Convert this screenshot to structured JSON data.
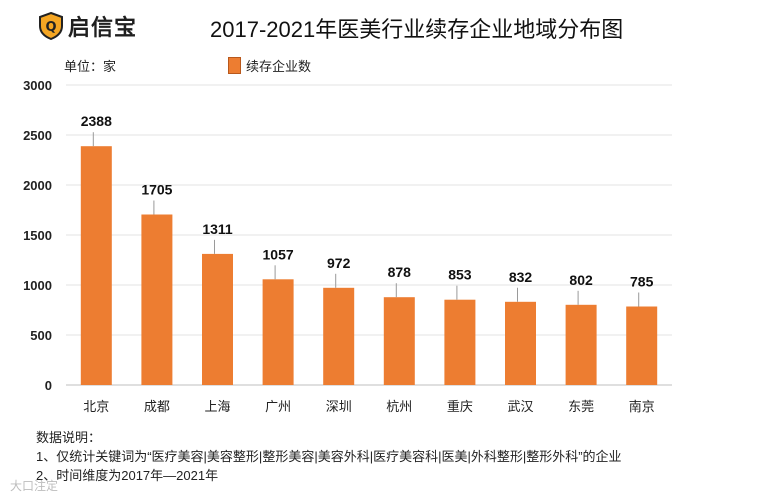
{
  "brand": {
    "name": "启信宝",
    "accent": "#F5A623"
  },
  "watermark": "大口注定",
  "legend_label": "续存企业数",
  "unit_label": "单位：家",
  "notes": {
    "heading": "数据说明：",
    "line1": "1、仅统计关键词为“医疗美容|美容整形|整形美容|美容外科|医疗美容科|医美|外科整形|整形外科”的企业",
    "line2": "2、时间维度为2017年—2021年"
  },
  "chart_data": {
    "type": "bar",
    "title": "2017-2021年医美行业续存企业地域分布图",
    "categories": [
      "北京",
      "成都",
      "上海",
      "广州",
      "深圳",
      "杭州",
      "重庆",
      "武汉",
      "东莞",
      "南京"
    ],
    "series": [
      {
        "name": "续存企业数",
        "values": [
          2388,
          1705,
          1311,
          1057,
          972,
          878,
          853,
          832,
          802,
          785
        ],
        "color": "#ED7D31"
      }
    ],
    "ylim": [
      0,
      3000
    ],
    "yticks": [
      0,
      500,
      1000,
      1500,
      2000,
      2500,
      3000
    ],
    "xlabel": "",
    "ylabel": "单位：家",
    "grid": true,
    "legend_position": "top"
  }
}
